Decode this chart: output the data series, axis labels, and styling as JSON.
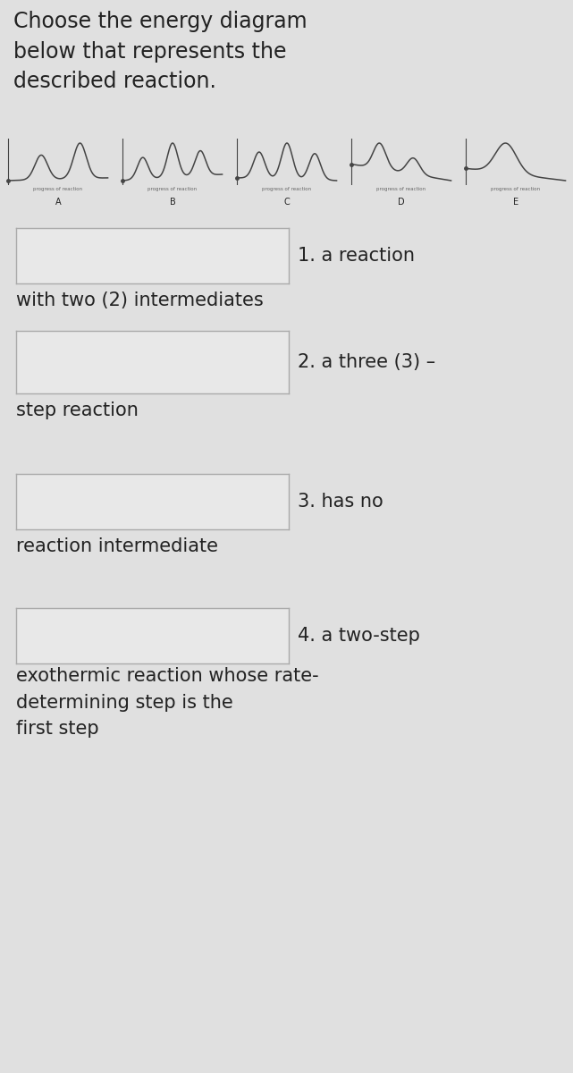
{
  "title": "Choose the energy diagram\nbelow that represents the\ndescribed reaction.",
  "bg_color": "#e0e0e0",
  "diagram_labels": [
    "A",
    "B",
    "C",
    "D",
    "E"
  ],
  "xlabel": "progress of reaction",
  "box_color": "#e8e8e8",
  "box_edge_color": "#aaaaaa",
  "text_color": "#222222",
  "q1_first": "1. a reaction",
  "q1_second": "with two (2) intermediates",
  "q2_first": "2. a three (3) –",
  "q2_second": "step reaction",
  "q3_first": "3. has no",
  "q3_second": "reaction intermediate",
  "q4_first": "4. a two-step",
  "q4_rest": "exothermic reaction whose rate-\ndetermining step is the\nfirst step",
  "title_fontsize": 17,
  "body_fontsize": 15
}
